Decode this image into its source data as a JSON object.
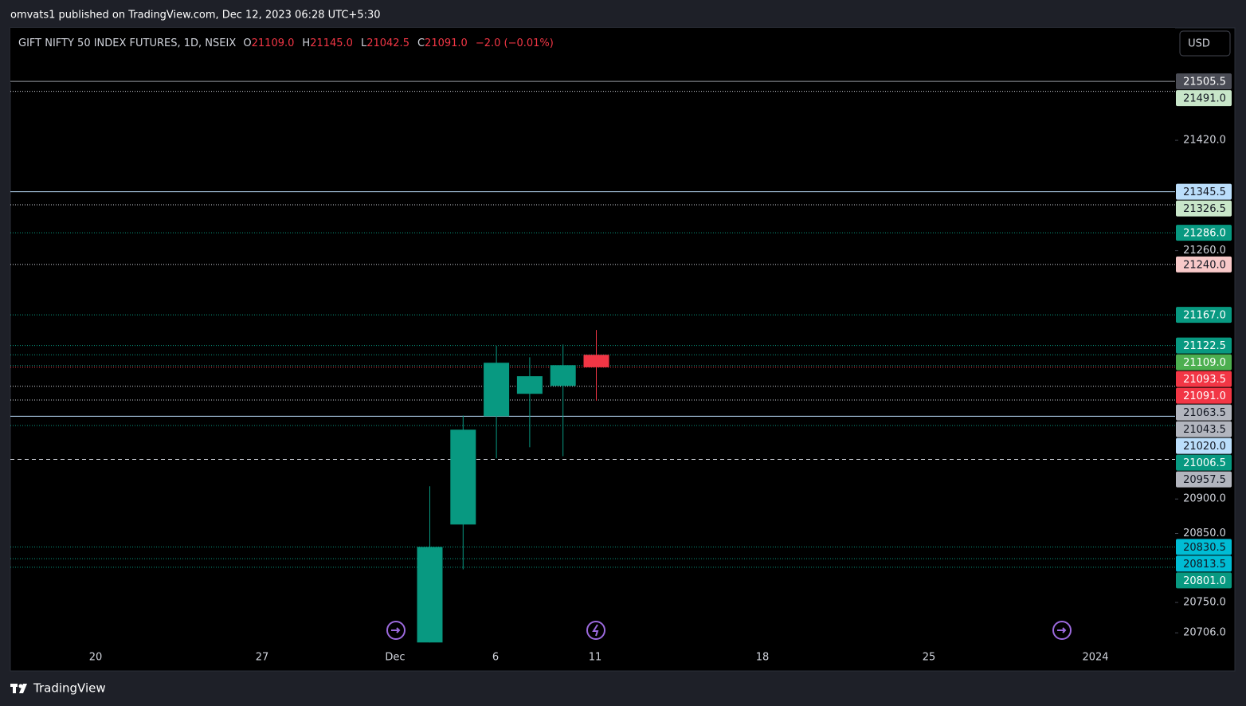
{
  "page": {
    "published": "omvats1 published on TradingView.com, Dec 12, 2023 06:28 UTC+5:30",
    "footer": "TradingView",
    "currency_button": "USD"
  },
  "chart_data": {
    "type": "candlestick",
    "symbol": "GIFT NIFTY 50 INDEX FUTURES, 1D, NSEIX",
    "ohlc_legend": [
      {
        "key": "O",
        "text": "21109.0"
      },
      {
        "key": "H",
        "text": "21145.0"
      },
      {
        "key": "L",
        "text": "21042.5"
      },
      {
        "key": "C",
        "text": "21091.0"
      }
    ],
    "change": "−2.0 (−0.01%)",
    "up_color": "#089981",
    "down_color": "#f23645",
    "candles": [
      {
        "open": 20692,
        "high": 20918.5,
        "low": 20692,
        "close": 20830.5
      },
      {
        "open": 20863,
        "high": 21021,
        "low": 20798,
        "close": 21000.5
      },
      {
        "open": 21020,
        "high": 21122,
        "low": 20959,
        "close": 21097.5
      },
      {
        "open": 21052.5,
        "high": 21105.5,
        "low": 20975,
        "close": 21078
      },
      {
        "open": 21064,
        "high": 21124,
        "low": 20962,
        "close": 21094
      },
      {
        "open": 21109,
        "high": 21145,
        "low": 21042.5,
        "close": 21091
      }
    ],
    "xticks": [
      "20",
      "27",
      "Dec",
      "6",
      "11",
      "18",
      "25",
      "2024"
    ],
    "ylim": [
      20690,
      21583
    ],
    "yticks": [
      {
        "value": 21420,
        "label": "21420.0"
      },
      {
        "value": 21260,
        "label": "21260.0"
      },
      {
        "value": 20900,
        "label": "20900.0"
      },
      {
        "value": 20850,
        "label": "20850.0"
      },
      {
        "value": 20750,
        "label": "20750.0"
      },
      {
        "value": 20706,
        "label": "20706.0"
      }
    ],
    "levels": [
      {
        "value": 21505.5,
        "label": "21505.5",
        "bg": "#4a4c55",
        "fg": "#ffffff",
        "line": "#9598a1",
        "style": "solid"
      },
      {
        "value": 21491,
        "label": "21491.0",
        "bg": "#c8e6c9",
        "fg": "#131722",
        "line": "#d1d4dc",
        "style": "dotted"
      },
      {
        "value": 21345.5,
        "label": "21345.5",
        "bg": "#bbdefb",
        "fg": "#131722",
        "line": "#bbdefb",
        "style": "solid"
      },
      {
        "value": 21326.5,
        "label": "21326.5",
        "bg": "#c8e6c9",
        "fg": "#131722",
        "line": "#d1d4dc",
        "style": "dotted"
      },
      {
        "value": 21286,
        "label": "21286.0",
        "bg": "#089981",
        "fg": "#ffffff",
        "line": "#089981",
        "style": "dotted"
      },
      {
        "value": 21240,
        "label": "21240.0",
        "bg": "#f8c9c9",
        "fg": "#131722",
        "line": "#d1d4dc",
        "style": "dotted"
      },
      {
        "value": 21167,
        "label": "21167.0",
        "bg": "#089981",
        "fg": "#ffffff",
        "line": "#089981",
        "style": "dotted"
      },
      {
        "value": 21122.5,
        "label": "21122.5",
        "bg": "#089981",
        "fg": "#ffffff",
        "line": "#089981",
        "style": "dotted"
      },
      {
        "value": 21109,
        "label": "21109.0",
        "bg": "#4caf50",
        "fg": "#ffffff",
        "line": "#089981",
        "style": "dotted"
      },
      {
        "value": 21093.5,
        "label": "21093.5",
        "bg": "#f23645",
        "fg": "#ffffff",
        "line": "#089981",
        "style": "dotted"
      },
      {
        "value": 21091,
        "label": "21091.0",
        "bg": "#f23645",
        "fg": "#ffffff",
        "line": "#f23645",
        "style": "dotted"
      },
      {
        "value": 21063.5,
        "label": "21063.5",
        "bg": "#b2b5be",
        "fg": "#131722",
        "line": "#d1d4dc",
        "style": "dotted"
      },
      {
        "value": 21043.5,
        "label": "21043.5",
        "bg": "#b2b5be",
        "fg": "#131722",
        "line": "#d1d4dc",
        "style": "dotted"
      },
      {
        "value": 21020,
        "label": "21020.0",
        "bg": "#bbdefb",
        "fg": "#131722",
        "line": "#bbdefb",
        "style": "solid"
      },
      {
        "value": 21006.5,
        "label": "21006.5",
        "bg": "#089981",
        "fg": "#ffffff",
        "line": "#089981",
        "style": "dotted"
      },
      {
        "value": 20957.5,
        "label": "20957.5",
        "bg": "#b2b5be",
        "fg": "#131722",
        "line": "#d1d4dc",
        "style": "dashed"
      },
      {
        "value": 20830.5,
        "label": "20830.5",
        "bg": "#00bcd4",
        "fg": "#131722",
        "line": "#089981",
        "style": "dotted"
      },
      {
        "value": 20813.5,
        "label": "20813.5",
        "bg": "#00bcd4",
        "fg": "#131722",
        "line": "#089981",
        "style": "dotted"
      },
      {
        "value": 20801,
        "label": "20801.0",
        "bg": "#089981",
        "fg": "#ffffff",
        "line": "#089981",
        "style": "dotted"
      }
    ]
  }
}
